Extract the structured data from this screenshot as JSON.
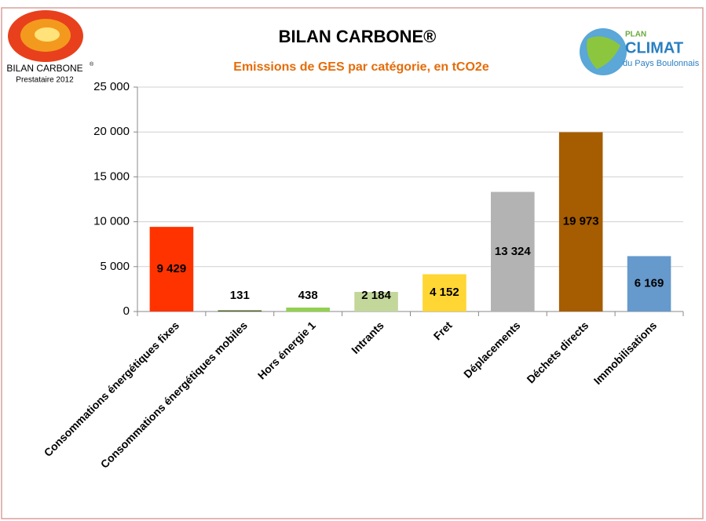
{
  "chart_data": {
    "type": "bar",
    "title": "BILAN CARBONE®",
    "subtitle": "Emissions de GES par catégorie, en tCO2e",
    "logo_left": {
      "name": "BILAN CARBONE",
      "mark": "®",
      "caption": "Prestataire 2012"
    },
    "logo_right": {
      "top": "PLAN",
      "name": "CLIMAT",
      "caption": "du Pays Boulonnais"
    },
    "categories": [
      "Consommations énergétiques fixes",
      "Consommations énergétiques mobiles",
      "Hors énergie 1",
      "Intrants",
      "Fret",
      "Déplacements",
      "Déchets directs",
      "Immobilisations"
    ],
    "values": [
      9429,
      131,
      438,
      2184,
      4152,
      13324,
      19973,
      6169
    ],
    "value_labels": [
      "9 429",
      "131",
      "438",
      "2 184",
      "4 152",
      "13 324",
      "19 973",
      "6 169"
    ],
    "colors": [
      "#ff3300",
      "#4f6228",
      "#92d050",
      "#c4d79b",
      "#ffd633",
      "#b3b3b3",
      "#a65c00",
      "#6699cc"
    ],
    "ylim": [
      0,
      25000
    ],
    "yticks": [
      0,
      {
        "value": 5000,
        "label": "5 000"
      },
      {
        "value": 10000,
        "label": "10 000"
      },
      {
        "value": 15000,
        "label": "15 000"
      },
      {
        "value": 20000,
        "label": "20 000"
      },
      {
        "value": 25000,
        "label": "25 000"
      }
    ],
    "grid": true
  }
}
